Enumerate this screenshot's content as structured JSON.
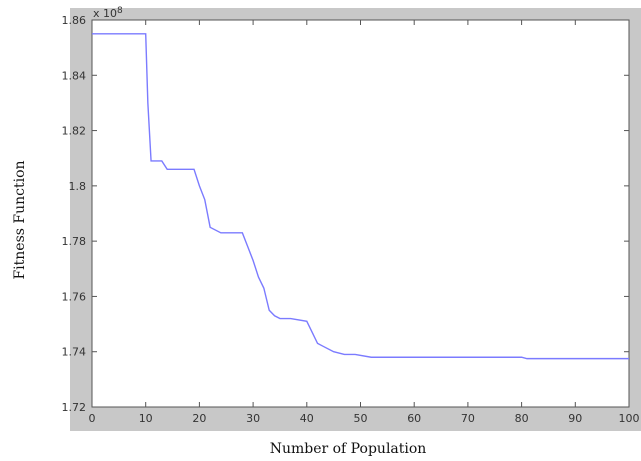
{
  "chart_data": {
    "type": "line",
    "title": "",
    "xlabel": "Number of Population",
    "ylabel": "Fitness Function",
    "xlim": [
      0,
      100
    ],
    "ylim": [
      1.72,
      1.86
    ],
    "x_ticks": [
      0,
      10,
      20,
      30,
      40,
      50,
      60,
      70,
      80,
      90,
      100
    ],
    "x_tick_labels": [
      "0",
      "10",
      "20",
      "30",
      "40",
      "50",
      "60",
      "70",
      "80",
      "90",
      "100"
    ],
    "y_ticks": [
      1.72,
      1.74,
      1.76,
      1.78,
      1.8,
      1.82,
      1.84,
      1.86
    ],
    "y_tick_labels": [
      "1.72",
      "1.74",
      "1.76",
      "1.78",
      "1.8",
      "1.82",
      "1.84",
      "1.86"
    ],
    "y_multiplier": {
      "base": "x 10",
      "exponent": "8"
    },
    "grid": false,
    "legend": false,
    "colors": {
      "line": "#7b7bff",
      "background": "#c8c8c8",
      "axes": "#ffffff"
    },
    "series": [
      {
        "x": [
          0,
          10,
          10.4,
          11,
          13,
          14,
          19,
          20,
          21,
          22,
          24,
          25,
          28,
          29,
          30,
          31,
          32,
          33,
          34,
          35,
          37,
          40,
          41,
          42,
          43,
          45,
          47,
          49,
          52,
          55,
          60,
          70,
          80,
          81,
          100
        ],
        "values": [
          1.855,
          1.855,
          1.83,
          1.809,
          1.809,
          1.806,
          1.806,
          1.8,
          1.795,
          1.785,
          1.783,
          1.783,
          1.783,
          1.778,
          1.773,
          1.767,
          1.763,
          1.755,
          1.753,
          1.752,
          1.752,
          1.751,
          1.747,
          1.743,
          1.742,
          1.74,
          1.739,
          1.739,
          1.738,
          1.738,
          1.738,
          1.738,
          1.738,
          1.7375,
          1.7375
        ]
      }
    ]
  }
}
